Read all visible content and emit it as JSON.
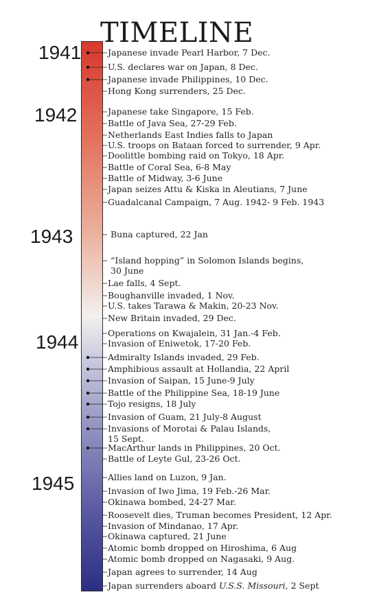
{
  "title": "TIMELINE",
  "years": [
    "1941",
    "1942",
    "1943",
    "1944",
    "1945"
  ],
  "events": [
    {
      "text": "Japanese invade Pearl Harbor, 7 Dec.",
      "dot": true
    },
    {
      "text": "U.S. declares war on Japan, 8 Dec.",
      "dot": true
    },
    {
      "text": "Japanese invade Philippines, 10 Dec.",
      "dot": true
    },
    {
      "text": "Hong Kong surrenders, 25 Dec.",
      "dot": false
    },
    {
      "text": "Japanese take Singapore, 15 Feb.",
      "dot": false
    },
    {
      "text": "Battle of Java Sea, 27-29 Feb.",
      "dot": false
    },
    {
      "text": "Netherlands East Indies falls to Japan",
      "dot": false
    },
    {
      "text": "U.S. troops on Bataan forced to surrender, 9 Apr.",
      "dot": false
    },
    {
      "text": "Doolittle bombing raid on Tokyo, 18 Apr.",
      "dot": false
    },
    {
      "text": "Battle of Coral Sea, 6-8 May",
      "dot": false
    },
    {
      "text": "Battle of Midway, 3-6 June",
      "dot": false
    },
    {
      "text": "Japan seizes Attu & Kiska in  Aleutians, 7 June",
      "dot": false
    },
    {
      "text": "Guadalcanal Campaign, 7 Aug. 1942- 9 Feb. 1943",
      "dot": false
    },
    {
      "text": "Buna captured, 22 Jan",
      "dot": false
    },
    {
      "text": "“Island hopping” in Solomon Islands begins,",
      "text2": "30 June",
      "dot": false
    },
    {
      "text": "Lae falls, 4 Sept.",
      "dot": false
    },
    {
      "text": "Boughanville invaded, 1 Nov.",
      "dot": false
    },
    {
      "text": "U.S. takes Tarawa & Makin, 20-23 Nov.",
      "dot": false
    },
    {
      "text": "New Britain invaded, 29 Dec.",
      "dot": false
    },
    {
      "text": "Operations on Kwajalein, 31 Jan.-4 Feb.",
      "dot": false
    },
    {
      "text": "Invasion of Eniwetok, 17-20 Feb.",
      "dot": false
    },
    {
      "text": "Admiralty Islands invaded, 29 Feb.",
      "dot": true
    },
    {
      "text": "Amphibious assault at Hollandia, 22 April",
      "dot": true
    },
    {
      "text": "Invasion of Saipan, 15 June-9 July",
      "dot": true
    },
    {
      "text": "Battle of the Philippine Sea, 18-19 June",
      "dot": true
    },
    {
      "text": "Tojo resigns, 18 July",
      "dot": true
    },
    {
      "text": "Invasion of Guam, 21 July-8 August",
      "dot": true
    },
    {
      "text": "Invasions of Morotai & Palau Islands,",
      "text2": "15 Sept.",
      "dot": true
    },
    {
      "text": "MacArthur lands in Philippines, 20 Oct.",
      "dot": true
    },
    {
      "text": "Battle of Leyte Gul, 23-26 Oct.",
      "dot": false
    },
    {
      "text": "Allies land on Luzon, 9 Jan.",
      "dot": false
    },
    {
      "text": "Invasion of Iwo Jima, 19 Feb.-26 Mar.",
      "dot": false
    },
    {
      "text": "Okinawa bombed, 24-27 Mar.",
      "dot": false
    },
    {
      "text": "Roosevelt dies, Truman becomes President, 12 Apr.",
      "dot": false
    },
    {
      "text": "Invasion of Mindanao, 17 Apr.",
      "dot": false
    },
    {
      "text": "Okinawa captured, 21 June",
      "dot": false
    },
    {
      "text": "Atomic bomb dropped on Hiroshima, 6 Aug",
      "dot": false
    },
    {
      "text": "Atomic bomb dropped on Nagasaki, 9 Aug.",
      "dot": false
    },
    {
      "text": "Japan agrees to surrender, 14 Aug",
      "dot": false
    },
    {
      "text": "Japan surrenders aboard ",
      "italic": "U.S.S. Missouri",
      "after": ", 2 Sept",
      "dot": false
    }
  ]
}
